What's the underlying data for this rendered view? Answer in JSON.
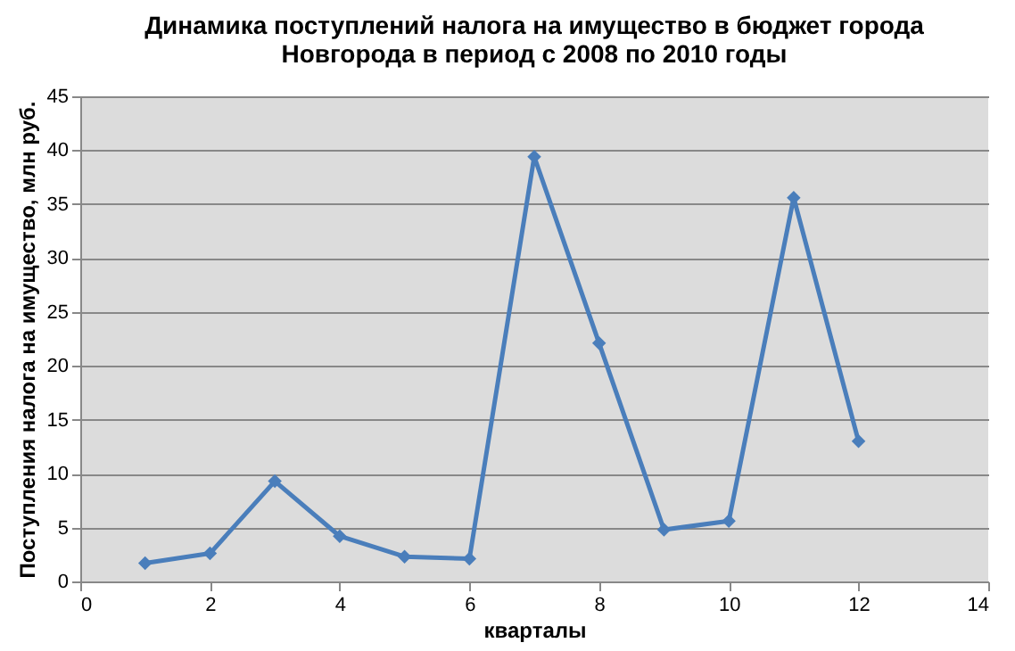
{
  "chart_data": {
    "type": "line",
    "title": "Динамика поступлений налога на имущество в бюджет города Новгорода в период с 2008 по 2010 годы",
    "xlabel": "кварталы",
    "ylabel": "Поступления налога на имущество, млн руб.",
    "x": [
      1,
      2,
      3,
      4,
      5,
      6,
      7,
      8,
      9,
      10,
      11,
      12
    ],
    "series": [
      {
        "color": "#4a7ebb",
        "values": [
          1.7,
          2.6,
          9.3,
          4.2,
          2.3,
          2.1,
          39.4,
          22.1,
          4.8,
          5.6,
          35.6,
          13.0
        ]
      }
    ],
    "xlim": [
      0,
      14
    ],
    "xticks": [
      0,
      2,
      4,
      6,
      8,
      10,
      12,
      14
    ],
    "ylim": [
      0,
      45
    ],
    "yticks": [
      0,
      5,
      10,
      15,
      20,
      25,
      30,
      35,
      40,
      45
    ],
    "grid": "y",
    "marker": "diamond",
    "line_style": "solid"
  }
}
